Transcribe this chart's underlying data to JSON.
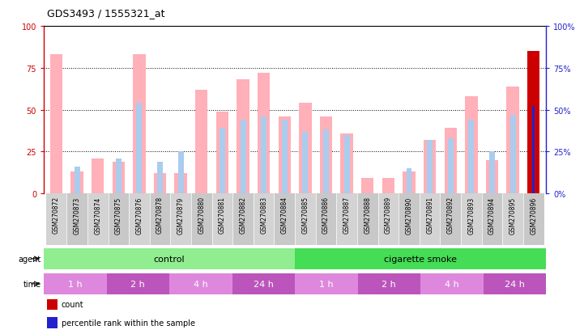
{
  "title": "GDS3493 / 1555321_at",
  "samples": [
    "GSM270872",
    "GSM270873",
    "GSM270874",
    "GSM270875",
    "GSM270876",
    "GSM270878",
    "GSM270879",
    "GSM270880",
    "GSM270881",
    "GSM270882",
    "GSM270883",
    "GSM270884",
    "GSM270885",
    "GSM270886",
    "GSM270887",
    "GSM270888",
    "GSM270889",
    "GSM270890",
    "GSM270891",
    "GSM270892",
    "GSM270893",
    "GSM270894",
    "GSM270895",
    "GSM270896"
  ],
  "pink_bars": [
    83,
    13,
    21,
    19,
    83,
    12,
    12,
    62,
    49,
    68,
    72,
    46,
    54,
    46,
    36,
    9,
    9,
    13,
    32,
    39,
    58,
    20,
    64,
    85
  ],
  "light_blue_bars": [
    0,
    16,
    0,
    21,
    54,
    19,
    25,
    0,
    39,
    44,
    46,
    44,
    37,
    38,
    35,
    0,
    0,
    15,
    32,
    33,
    44,
    25,
    47,
    52
  ],
  "red_bar_index": 23,
  "red_bar_value": 85,
  "blue_bar_index": 23,
  "blue_bar_value": 52,
  "agent_control_color": "#90EE90",
  "agent_smoke_color": "#44DD55",
  "time_color_light": "#DD88DD",
  "time_color_dark": "#BB55BB",
  "yticks": [
    0,
    25,
    50,
    75,
    100
  ],
  "pink_color": "#FFB0B8",
  "light_blue_color": "#AACCEE",
  "red_color": "#CC0000",
  "blue_color": "#2222CC",
  "left_axis_color": "#CC0000",
  "right_axis_color": "#2222CC"
}
